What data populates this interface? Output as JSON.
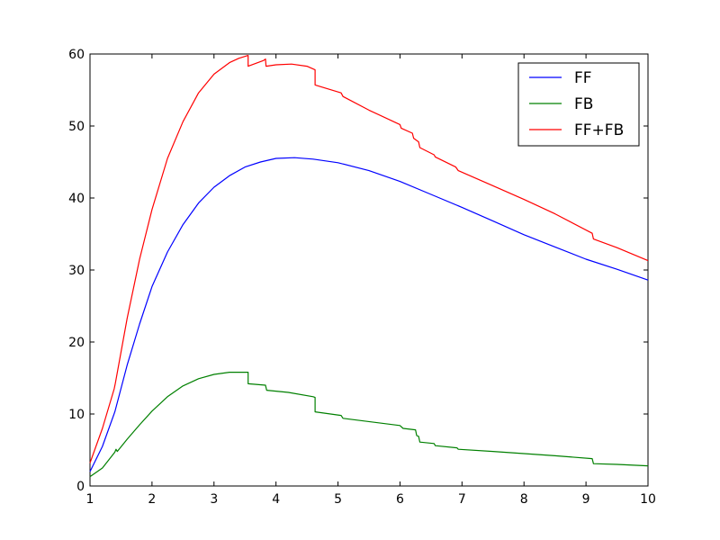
{
  "chart_data": {
    "type": "line",
    "title": "",
    "xlabel": "",
    "ylabel": "",
    "xlim": [
      1,
      10
    ],
    "ylim": [
      0,
      60
    ],
    "xticks": [
      1,
      2,
      3,
      4,
      5,
      6,
      7,
      8,
      9,
      10
    ],
    "yticks": [
      0,
      10,
      20,
      30,
      40,
      50,
      60
    ],
    "grid": false,
    "legend_position": "top-right",
    "series": [
      {
        "name": "FF",
        "color": "#0000ff",
        "points": [
          [
            1.0,
            2.0
          ],
          [
            1.2,
            5.5
          ],
          [
            1.4,
            10.3
          ],
          [
            1.6,
            16.8
          ],
          [
            1.8,
            22.5
          ],
          [
            2.0,
            27.7
          ],
          [
            2.25,
            32.5
          ],
          [
            2.5,
            36.3
          ],
          [
            2.75,
            39.3
          ],
          [
            3.0,
            41.5
          ],
          [
            3.25,
            43.1
          ],
          [
            3.5,
            44.3
          ],
          [
            3.75,
            45.0
          ],
          [
            4.0,
            45.5
          ],
          [
            4.3,
            45.6
          ],
          [
            4.6,
            45.4
          ],
          [
            5.0,
            44.9
          ],
          [
            5.5,
            43.8
          ],
          [
            6.0,
            42.3
          ],
          [
            6.5,
            40.5
          ],
          [
            7.0,
            38.7
          ],
          [
            7.5,
            36.8
          ],
          [
            8.0,
            34.9
          ],
          [
            8.5,
            33.2
          ],
          [
            9.0,
            31.5
          ],
          [
            9.5,
            30.1
          ],
          [
            10.0,
            28.6
          ]
        ]
      },
      {
        "name": "FB",
        "color": "#008000",
        "points": [
          [
            1.0,
            1.3
          ],
          [
            1.2,
            2.5
          ],
          [
            1.4,
            4.7
          ],
          [
            1.42,
            5.1
          ],
          [
            1.44,
            4.8
          ],
          [
            1.6,
            6.5
          ],
          [
            1.8,
            8.5
          ],
          [
            2.0,
            10.4
          ],
          [
            2.25,
            12.4
          ],
          [
            2.5,
            13.9
          ],
          [
            2.75,
            14.9
          ],
          [
            3.0,
            15.5
          ],
          [
            3.25,
            15.8
          ],
          [
            3.55,
            15.8
          ],
          [
            3.55,
            14.2
          ],
          [
            3.83,
            14.0
          ],
          [
            3.85,
            13.3
          ],
          [
            4.2,
            13.0
          ],
          [
            4.6,
            12.4
          ],
          [
            4.63,
            12.3
          ],
          [
            4.63,
            10.3
          ],
          [
            5.05,
            9.8
          ],
          [
            5.08,
            9.4
          ],
          [
            6.0,
            8.4
          ],
          [
            6.05,
            8.0
          ],
          [
            6.25,
            7.8
          ],
          [
            6.27,
            7.0
          ],
          [
            6.3,
            6.9
          ],
          [
            6.32,
            6.1
          ],
          [
            6.55,
            5.9
          ],
          [
            6.57,
            5.6
          ],
          [
            6.92,
            5.3
          ],
          [
            6.94,
            5.1
          ],
          [
            7.5,
            4.8
          ],
          [
            8.0,
            4.5
          ],
          [
            8.5,
            4.2
          ],
          [
            9.1,
            3.8
          ],
          [
            9.12,
            3.1
          ],
          [
            9.5,
            3.0
          ],
          [
            10.0,
            2.8
          ]
        ]
      },
      {
        "name": "FF+FB",
        "color": "#ff0000",
        "points": [
          [
            1.0,
            3.2
          ],
          [
            1.2,
            8.0
          ],
          [
            1.39,
            13.5
          ],
          [
            1.41,
            14.3
          ],
          [
            1.6,
            23.3
          ],
          [
            1.8,
            31.5
          ],
          [
            2.0,
            38.4
          ],
          [
            2.25,
            45.5
          ],
          [
            2.5,
            50.6
          ],
          [
            2.75,
            54.6
          ],
          [
            3.0,
            57.2
          ],
          [
            3.25,
            58.8
          ],
          [
            3.4,
            59.4
          ],
          [
            3.55,
            59.8
          ],
          [
            3.55,
            58.3
          ],
          [
            3.8,
            59.1
          ],
          [
            3.83,
            59.3
          ],
          [
            3.84,
            58.3
          ],
          [
            4.0,
            58.5
          ],
          [
            4.25,
            58.6
          ],
          [
            4.5,
            58.3
          ],
          [
            4.63,
            57.8
          ],
          [
            4.63,
            55.7
          ],
          [
            5.05,
            54.6
          ],
          [
            5.08,
            54.1
          ],
          [
            5.5,
            52.2
          ],
          [
            6.0,
            50.2
          ],
          [
            6.02,
            49.7
          ],
          [
            6.2,
            49.0
          ],
          [
            6.22,
            48.3
          ],
          [
            6.3,
            47.8
          ],
          [
            6.32,
            47.0
          ],
          [
            6.55,
            46.0
          ],
          [
            6.57,
            45.7
          ],
          [
            6.9,
            44.3
          ],
          [
            6.94,
            43.8
          ],
          [
            7.5,
            41.7
          ],
          [
            8.0,
            39.8
          ],
          [
            8.5,
            37.8
          ],
          [
            9.1,
            35.1
          ],
          [
            9.12,
            34.3
          ],
          [
            9.5,
            33.1
          ],
          [
            10.0,
            31.3
          ]
        ]
      }
    ]
  }
}
